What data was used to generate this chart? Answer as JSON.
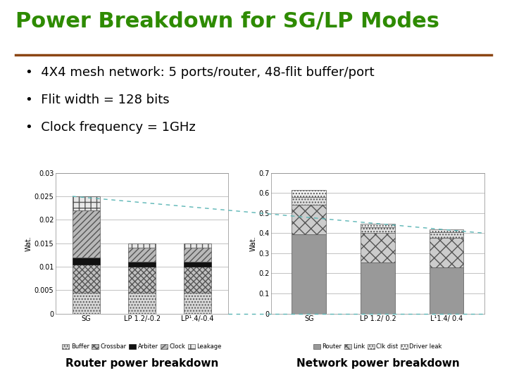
{
  "title": "Power Breakdown for SG/LP Modes",
  "title_color": "#2e8b00",
  "title_fontsize": 22,
  "separator_color": "#8B4513",
  "bullets": [
    "4X4 mesh network: 5 ports/router, 48-flit buffer/port",
    "Flit width = 128 bits",
    "Clock frequency = 1GHz"
  ],
  "bullet_fontsize": 13,
  "router_categories": [
    "SG",
    "LP 1.2/-0.2",
    "LP¹.4/-0.4"
  ],
  "router_ylim": [
    0,
    0.03
  ],
  "router_yticks": [
    0,
    0.005,
    0.01,
    0.015,
    0.02,
    0.025,
    0.03
  ],
  "router_ytick_labels": [
    "0",
    "0.005",
    "0.01",
    "0.015",
    "0.02",
    "0.025",
    "0.03"
  ],
  "router_ylabel": "Wat.",
  "router_data": {
    "Buffer": [
      0.0045,
      0.0045,
      0.0045
    ],
    "Crossbar": [
      0.006,
      0.0055,
      0.0055
    ],
    "Arbiter": [
      0.0015,
      0.001,
      0.001
    ],
    "Clock": [
      0.01,
      0.003,
      0.003
    ],
    "Leakage": [
      0.003,
      0.001,
      0.001
    ]
  },
  "network_categories": [
    "SG",
    "LP 1.2/ 0.2",
    "L¹1.4/ 0.4"
  ],
  "network_ylim": [
    0,
    0.7
  ],
  "network_yticks": [
    0,
    0.1,
    0.2,
    0.3,
    0.4,
    0.5,
    0.6,
    0.7
  ],
  "network_ytick_labels": [
    "0",
    "0.1",
    "0.2",
    "0.3",
    "0.4",
    "0.5",
    "0.6",
    "0.7"
  ],
  "network_ylabel": "Wat.",
  "network_data": {
    "Router": [
      0.395,
      0.255,
      0.23
    ],
    "Link": [
      0.145,
      0.145,
      0.145
    ],
    "Clk dist": [
      0.04,
      0.03,
      0.03
    ],
    "Driver leak": [
      0.035,
      0.015,
      0.015
    ]
  },
  "left_caption": "Router power breakdown",
  "right_caption": "Network power breakdown",
  "caption_fontsize": 11,
  "background_color": "#ffffff",
  "dashed_color": "#5ab5b5"
}
